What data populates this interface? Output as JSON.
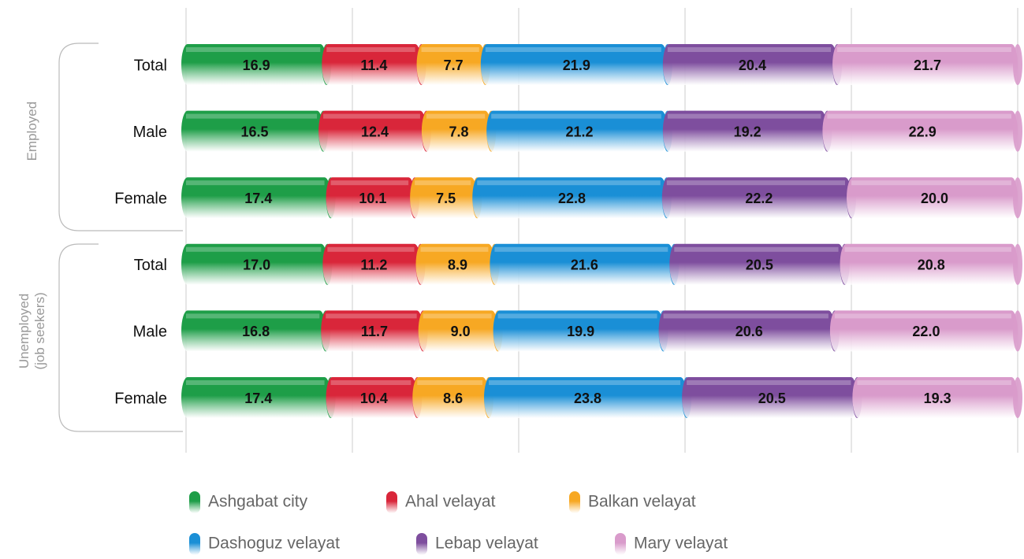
{
  "chart_data": {
    "type": "stacked-bar-horizontal",
    "categories": [
      "Total",
      "Male",
      "Female",
      "Total",
      "Male",
      "Female"
    ],
    "groups": [
      [
        "Employed"
      ],
      [
        "Unemployed",
        "(job seekers)"
      ]
    ],
    "xlim": [
      0,
      100
    ],
    "xticks": [
      0,
      20,
      40,
      60,
      80,
      100
    ],
    "grid": true,
    "series": [
      {
        "name": "Ashgabat city",
        "color": "#1e9e48",
        "values": [
          16.9,
          16.5,
          17.4,
          17,
          16.8,
          17.4
        ],
        "value_labels": [
          "16.9",
          "16.5",
          "17.4",
          "17.0",
          "16.8",
          "17.4"
        ]
      },
      {
        "name": "Ahal velayat",
        "color": "#d9263a",
        "values": [
          11.4,
          12.4,
          10.1,
          11.2,
          11.7,
          10.4
        ],
        "value_labels": [
          "11.4",
          "12.4",
          "10.1",
          "11.2",
          "11.7",
          "10.4"
        ]
      },
      {
        "name": "Balkan velayat",
        "color": "#f7a823",
        "values": [
          7.7,
          7.8,
          7.5,
          8.9,
          9,
          8.6
        ],
        "value_labels": [
          "7.7",
          "7.8",
          "7.5",
          "8.9",
          "9.0",
          "8.6"
        ]
      },
      {
        "name": "Dashoguz velayat",
        "color": "#1a8fd6",
        "values": [
          21.9,
          21.2,
          22.8,
          21.6,
          19.9,
          23.8
        ],
        "value_labels": [
          "21.9",
          "21.2",
          "22.8",
          "21.6",
          "19.9",
          "23.8"
        ]
      },
      {
        "name": "Lebap velayat",
        "color": "#7e4e9e",
        "values": [
          20.4,
          19.2,
          22.2,
          20.5,
          20.6,
          20.5
        ],
        "value_labels": [
          "20.4",
          "19.2",
          "22.2",
          "20.5",
          "20.6",
          "20.5"
        ]
      },
      {
        "name": "Mary velayat",
        "color": "#d99bcb",
        "values": [
          21.7,
          22.9,
          20,
          20.8,
          22,
          19.3
        ],
        "value_labels": [
          "21.7",
          "22.9",
          "20.0",
          "20.8",
          "22.0",
          "19.3"
        ]
      }
    ]
  }
}
